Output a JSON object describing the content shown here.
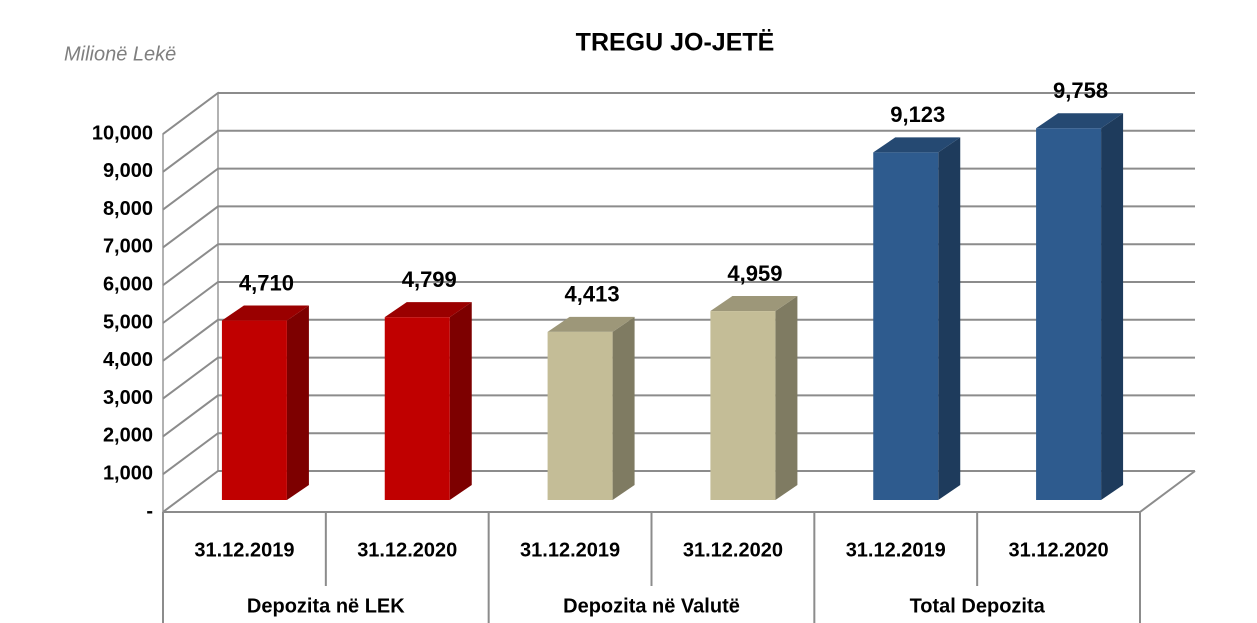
{
  "chart_data": {
    "type": "bar",
    "title": "TREGU JO-JETË",
    "y_label": "Milionë Lekë",
    "categories": [
      "31.12.2019",
      "31.12.2020",
      "31.12.2019",
      "31.12.2020",
      "31.12.2019",
      "31.12.2020"
    ],
    "groups": [
      "Depozita në LEK",
      "Depozita në Valutë",
      "Total Depozita"
    ],
    "values": [
      4710,
      4799,
      4413,
      4959,
      9123,
      9758
    ],
    "value_labels": [
      "4,710",
      "4,799",
      "4,413",
      "4,959",
      "9,123",
      "9,758"
    ],
    "colors": [
      "#c00000",
      "#c00000",
      "#c4bd97",
      "#c4bd97",
      "#2e5b8e",
      "#2e5b8e"
    ],
    "ylim": [
      0,
      10000
    ],
    "yticks": [
      {
        "value": 0,
        "label": "-"
      },
      {
        "value": 1000,
        "label": "1,000"
      },
      {
        "value": 2000,
        "label": "2,000"
      },
      {
        "value": 3000,
        "label": "3,000"
      },
      {
        "value": 4000,
        "label": "4,000"
      },
      {
        "value": 5000,
        "label": "5,000"
      },
      {
        "value": 6000,
        "label": "6,000"
      },
      {
        "value": 7000,
        "label": "7,000"
      },
      {
        "value": 8000,
        "label": "8,000"
      },
      {
        "value": 9000,
        "label": "9,000"
      },
      {
        "value": 10000,
        "label": "10,000"
      }
    ],
    "grid": true
  }
}
